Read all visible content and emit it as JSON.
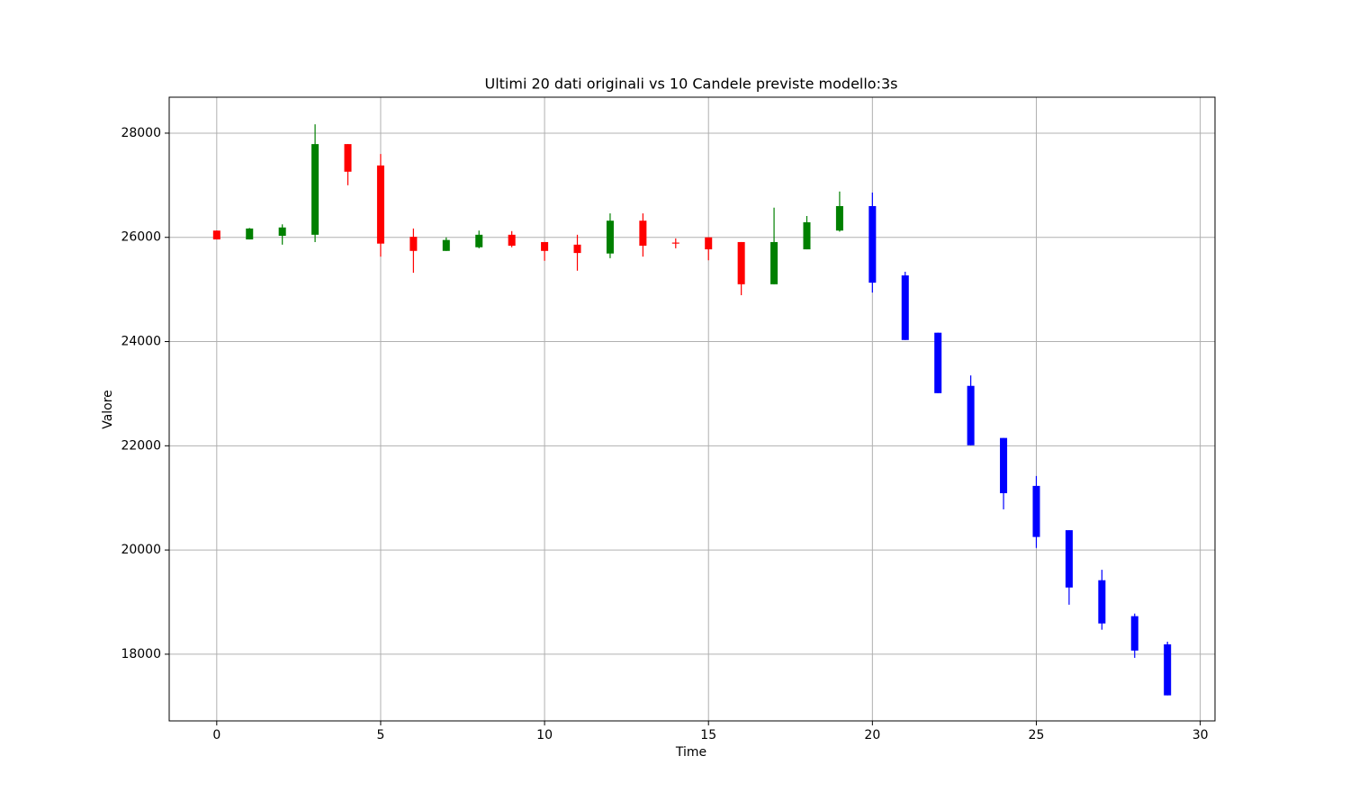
{
  "chart_data": {
    "type": "candlestick",
    "title": "Ultimi 20 dati originali vs 10 Candele previste modello:3s",
    "x_label": "Time",
    "y_label": "Valore",
    "xlim": [
      -1.45,
      30.45
    ],
    "ylim": [
      16720,
      28690
    ],
    "xticks": [
      0,
      5,
      10,
      15,
      20,
      25,
      30
    ],
    "yticks": [
      18000,
      20000,
      22000,
      24000,
      26000,
      28000
    ],
    "grid": true,
    "up_color": "#008000",
    "down_color": "#ff0000",
    "x": [
      0,
      1,
      2,
      3,
      4,
      5,
      6,
      7,
      8,
      9,
      10,
      11,
      12,
      13,
      14,
      15,
      16,
      17,
      18,
      19
    ],
    "open": [
      26130,
      25960,
      26030,
      26050,
      27790,
      27380,
      26010,
      25740,
      25810,
      26050,
      25910,
      25860,
      25690,
      26320,
      25900,
      26000,
      25910,
      25100,
      25770,
      26130
    ],
    "high": [
      26130,
      26180,
      26250,
      28170,
      27790,
      27600,
      26170,
      26000,
      26130,
      26120,
      25910,
      26050,
      26460,
      26460,
      25980,
      26000,
      25910,
      26570,
      26410,
      26880
    ],
    "low": [
      25960,
      25960,
      25860,
      25910,
      27000,
      25630,
      25320,
      25740,
      25790,
      25810,
      25550,
      25360,
      25600,
      25630,
      25790,
      25560,
      24890,
      25100,
      25770,
      26110
    ],
    "close": [
      25960,
      26170,
      26190,
      27790,
      27260,
      25880,
      25740,
      25950,
      26050,
      25840,
      25740,
      25700,
      26320,
      25840,
      25880,
      25770,
      25100,
      25910,
      26290,
      26600
    ],
    "forecast": {
      "color": "#0000ff",
      "x": [
        20,
        21,
        22,
        23,
        24,
        25,
        26,
        27,
        28,
        29
      ],
      "open": [
        26600,
        25270,
        24170,
        23150,
        22150,
        21230,
        20380,
        19420,
        18730,
        18190
      ],
      "high": [
        26860,
        25340,
        24170,
        23350,
        22150,
        21420,
        20380,
        19620,
        18780,
        18240
      ],
      "low": [
        24940,
        24030,
        23010,
        22010,
        20780,
        20040,
        18950,
        18470,
        17930,
        17210
      ],
      "close": [
        25130,
        24030,
        23010,
        22010,
        21090,
        20250,
        19280,
        18590,
        18070,
        17210
      ]
    }
  }
}
